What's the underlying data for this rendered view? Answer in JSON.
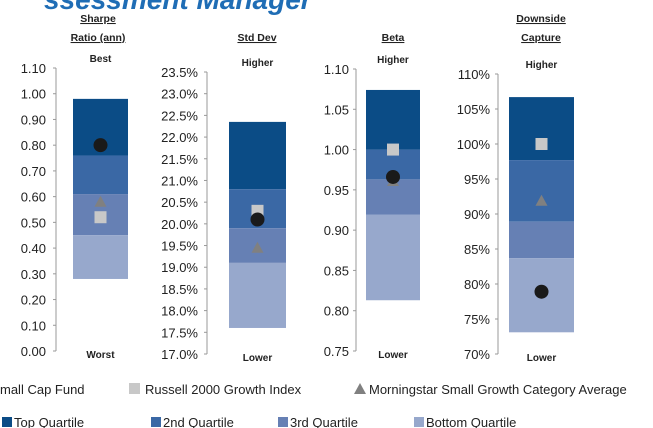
{
  "title": "ssessment Manager",
  "legend": {
    "markers": [
      "mall Cap Fund",
      "Russell 2000 Growth Index",
      "Morningstar Small Growth Category Average"
    ],
    "quartiles": [
      {
        "name": "Top Quartile",
        "color": "#0b4c86"
      },
      {
        "name": "2nd Quartile",
        "color": "#3a68a5"
      },
      {
        "name": "3rd Quartile",
        "color": "#6680b4"
      },
      {
        "name": "Bottom Quartile",
        "color": "#97a8cc"
      }
    ]
  },
  "chart_data": [
    {
      "type": "bar",
      "title": [
        "Sharpe",
        "Ratio (ann)"
      ],
      "top_label": "Best",
      "bottom_label": "Worst",
      "ylim": [
        0,
        1.1
      ],
      "yticks": [
        {
          "value": 0,
          "label": "0.00"
        },
        {
          "value": 0.1,
          "label": "0.10"
        },
        {
          "value": 0.2,
          "label": "0.20"
        },
        {
          "value": 0.3,
          "label": "0.30"
        },
        {
          "value": 0.4,
          "label": "0.40"
        },
        {
          "value": 0.5,
          "label": "0.50"
        },
        {
          "value": 0.6,
          "label": "0.60"
        },
        {
          "value": 0.7,
          "label": "0.70"
        },
        {
          "value": 0.8,
          "label": "0.80"
        },
        {
          "value": 0.9,
          "label": "0.90"
        },
        {
          "value": 1,
          "label": "1.00"
        },
        {
          "value": 1.1,
          "label": "1.10"
        }
      ],
      "quartiles": [
        [
          0.76,
          0.98
        ],
        [
          0.61,
          0.76
        ],
        [
          0.45,
          0.61
        ],
        [
          0.28,
          0.45
        ]
      ],
      "fund": 0.8,
      "index": 0.52,
      "category": 0.58
    },
    {
      "type": "bar",
      "title": [
        "Std Dev"
      ],
      "top_label": "Higher",
      "bottom_label": "Lower",
      "ylim": [
        17,
        23.5
      ],
      "yticks": [
        {
          "value": 17,
          "label": "17.0%"
        },
        {
          "value": 17.5,
          "label": "17.5%"
        },
        {
          "value": 18,
          "label": "18.0%"
        },
        {
          "value": 18.5,
          "label": "18.5%"
        },
        {
          "value": 19,
          "label": "19.0%"
        },
        {
          "value": 19.5,
          "label": "19.5%"
        },
        {
          "value": 20,
          "label": "20.0%"
        },
        {
          "value": 20.5,
          "label": "20.5%"
        },
        {
          "value": 21,
          "label": "21.0%"
        },
        {
          "value": 21.5,
          "label": "21.5%"
        },
        {
          "value": 22,
          "label": "22.0%"
        },
        {
          "value": 22.5,
          "label": "22.5%"
        },
        {
          "value": 23,
          "label": "23.0%"
        },
        {
          "value": 23.5,
          "label": "23.5%"
        }
      ],
      "quartiles": [
        [
          20.8,
          22.35
        ],
        [
          19.9,
          20.8
        ],
        [
          19.1,
          19.9
        ],
        [
          17.6,
          19.1
        ]
      ],
      "fund": 20.1,
      "index": 20.3,
      "category": 19.45
    },
    {
      "type": "bar",
      "title": [
        "Beta"
      ],
      "top_label": "Higher",
      "bottom_label": "Lower",
      "ylim": [
        0.75,
        1.1
      ],
      "yticks": [
        {
          "value": 0.75,
          "label": "0.75"
        },
        {
          "value": 0.8,
          "label": "0.80"
        },
        {
          "value": 0.85,
          "label": "0.85"
        },
        {
          "value": 0.9,
          "label": "0.90"
        },
        {
          "value": 0.95,
          "label": "0.95"
        },
        {
          "value": 1,
          "label": "1.00"
        },
        {
          "value": 1.05,
          "label": "1.05"
        },
        {
          "value": 1.1,
          "label": "1.10"
        }
      ],
      "quartiles": [
        [
          1.0,
          1.074
        ],
        [
          0.963,
          1.0
        ],
        [
          0.919,
          0.963
        ],
        [
          0.813,
          0.919
        ]
      ],
      "fund": 0.966,
      "index": 1.0,
      "category": 0.961
    },
    {
      "type": "bar",
      "title": [
        "Downside",
        "Capture"
      ],
      "top_label": "Higher",
      "bottom_label": "Lower",
      "ylim": [
        70,
        110
      ],
      "yticks": [
        {
          "value": 70,
          "label": "70%"
        },
        {
          "value": 75,
          "label": "75%"
        },
        {
          "value": 80,
          "label": "80%"
        },
        {
          "value": 85,
          "label": "85%"
        },
        {
          "value": 90,
          "label": "90%"
        },
        {
          "value": 95,
          "label": "95%"
        },
        {
          "value": 100,
          "label": "100%"
        },
        {
          "value": 105,
          "label": "105%"
        },
        {
          "value": 110,
          "label": "110%"
        }
      ],
      "quartiles": [
        [
          97.7,
          106.7
        ],
        [
          88.9,
          97.7
        ],
        [
          83.7,
          88.9
        ],
        [
          73.1,
          83.7
        ]
      ],
      "fund": 78.9,
      "index": 100,
      "category": 91.9
    }
  ]
}
